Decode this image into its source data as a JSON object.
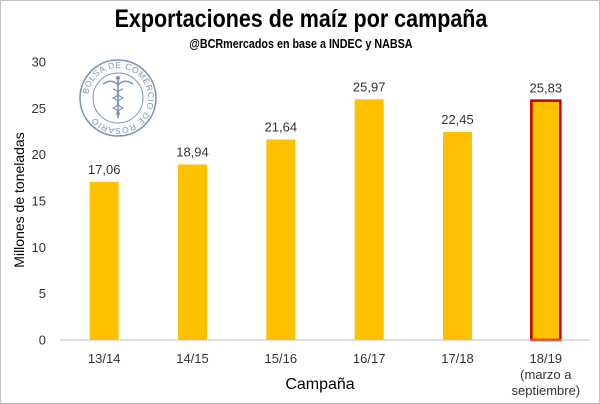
{
  "chart_data": {
    "type": "bar",
    "title": "Exportaciones de maíz por campaña",
    "subtitle": "@BCRmercados en base a INDEC y NABSA",
    "xlabel": "Campaña",
    "ylabel": "Millones de toneladas",
    "ylim": [
      0,
      30
    ],
    "yticks": [
      "0",
      "5",
      "10",
      "15",
      "20",
      "25",
      "30"
    ],
    "categories": [
      [
        "13/14"
      ],
      [
        "14/15"
      ],
      [
        "15/16"
      ],
      [
        "16/17"
      ],
      [
        "17/18"
      ],
      [
        "18/19",
        "(marzo a",
        "septiembre)"
      ]
    ],
    "values": [
      17.06,
      18.94,
      21.64,
      25.97,
      22.45,
      25.83
    ],
    "value_labels": [
      "17,06",
      "18,94",
      "21,64",
      "25,97",
      "22,45",
      "25,83"
    ],
    "highlighted_index": 5,
    "grid": false,
    "legend": false,
    "colors": {
      "bar": "#FFC000",
      "highlight_border": "#C00000",
      "axis": "#bfbfbf"
    }
  },
  "logo": {
    "icon": "bolsa-de-comercio-de-rosario-seal",
    "text": "BOLSA DE COMERCIO DE ROSARIO"
  }
}
